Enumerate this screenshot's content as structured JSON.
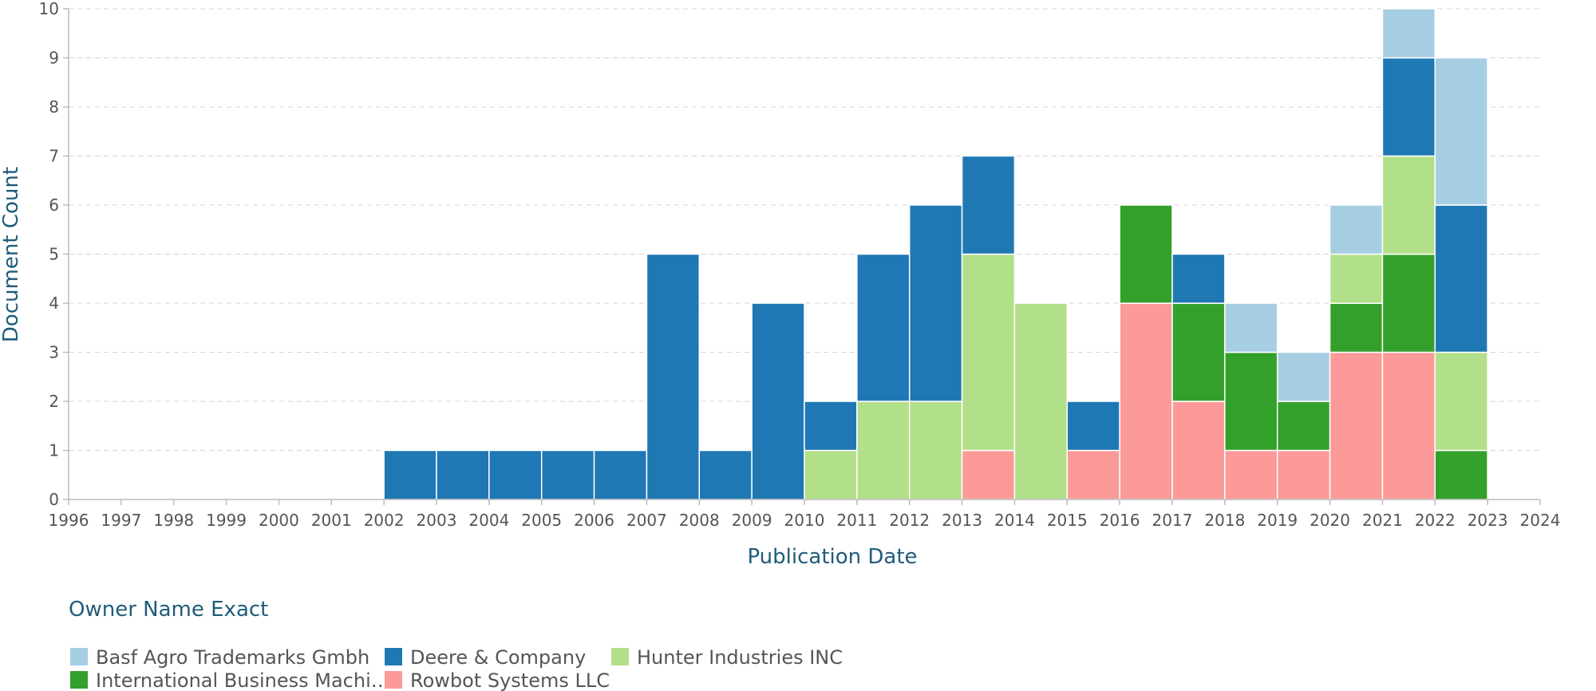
{
  "chart_data": {
    "type": "bar",
    "stacked": true,
    "title": "",
    "xlabel": "Publication Date",
    "ylabel": "Document Count",
    "x_ticks": [
      "1996",
      "1997",
      "1998",
      "1999",
      "2000",
      "2001",
      "2002",
      "2003",
      "2004",
      "2005",
      "2006",
      "2007",
      "2008",
      "2009",
      "2010",
      "2011",
      "2012",
      "2013",
      "2014",
      "2015",
      "2016",
      "2017",
      "2018",
      "2019",
      "2020",
      "2021",
      "2022",
      "2023",
      "2024"
    ],
    "y_ticks": [
      "0",
      "1",
      "2",
      "3",
      "4",
      "5",
      "6",
      "7",
      "8",
      "9",
      "10"
    ],
    "xlim": [
      1996,
      2024
    ],
    "ylim": [
      0,
      10
    ],
    "grid": true,
    "legend": {
      "title": "Owner Name Exact",
      "placement": "bottom-left"
    },
    "categories": [
      "2002",
      "2003",
      "2004",
      "2005",
      "2006",
      "2007",
      "2008",
      "2009",
      "2010",
      "2011",
      "2012",
      "2013",
      "2014",
      "2015",
      "2016",
      "2017",
      "2018",
      "2019",
      "2020",
      "2021",
      "2022"
    ],
    "series": [
      {
        "name": "Rowbot Systems LLC",
        "color": "#fb9a99",
        "values": [
          0,
          0,
          0,
          0,
          0,
          0,
          0,
          0,
          0,
          0,
          0,
          1,
          0,
          1,
          4,
          2,
          1,
          1,
          3,
          3,
          0
        ]
      },
      {
        "name": "International Business Machi…",
        "color": "#33a02c",
        "values": [
          0,
          0,
          0,
          0,
          0,
          0,
          0,
          0,
          0,
          0,
          0,
          0,
          0,
          0,
          2,
          2,
          2,
          1,
          1,
          2,
          1
        ]
      },
      {
        "name": "Hunter Industries INC",
        "color": "#b2df8a",
        "values": [
          0,
          0,
          0,
          0,
          0,
          0,
          0,
          0,
          1,
          2,
          2,
          4,
          4,
          0,
          0,
          0,
          0,
          0,
          1,
          2,
          2
        ]
      },
      {
        "name": "Deere & Company",
        "color": "#1f78b4",
        "values": [
          1,
          1,
          1,
          1,
          1,
          5,
          1,
          4,
          1,
          3,
          4,
          2,
          0,
          1,
          0,
          1,
          0,
          0,
          0,
          2,
          3
        ]
      },
      {
        "name": "Basf Agro Trademarks Gmbh",
        "color": "#a6cee3",
        "values": [
          0,
          0,
          0,
          0,
          0,
          0,
          0,
          0,
          0,
          0,
          0,
          0,
          0,
          0,
          0,
          0,
          1,
          1,
          1,
          1,
          3
        ]
      }
    ],
    "legend_order": [
      "Basf Agro Trademarks Gmbh",
      "Deere & Company",
      "Hunter Industries INC",
      "International Business Machi…",
      "Rowbot Systems LLC"
    ]
  }
}
